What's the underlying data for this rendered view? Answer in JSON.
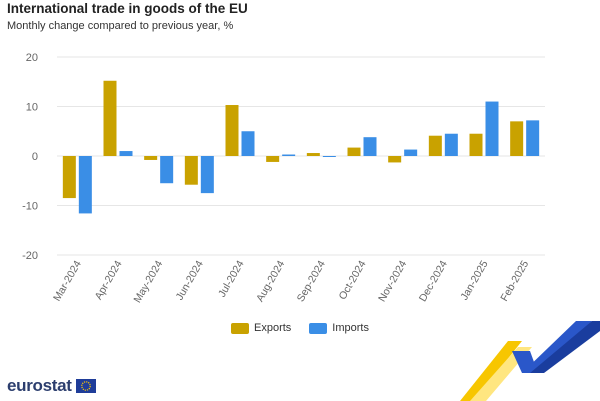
{
  "header": {
    "title": "International trade in goods of the EU",
    "subtitle": "Monthly change compared to previous year, %"
  },
  "legend": {
    "exports_label": "Exports",
    "imports_label": "Imports"
  },
  "logo": {
    "text": "eurostat"
  },
  "colors": {
    "exports": "#c9a200",
    "imports": "#3a8ee6",
    "grid": "#e6e6e6",
    "axis_text": "#666666"
  },
  "chart_data": {
    "type": "bar",
    "title": "International trade in goods of the EU",
    "subtitle": "Monthly change compared to previous year, %",
    "categories": [
      "Mar-2024",
      "Apr-2024",
      "May-2024",
      "Jun-2024",
      "Jul-2024",
      "Aug-2024",
      "Sep-2024",
      "Oct-2024",
      "Nov-2024",
      "Dec-2024",
      "Jan-2025",
      "Feb-2025"
    ],
    "series": [
      {
        "name": "Exports",
        "color": "#c9a200",
        "values": [
          -8.5,
          15.2,
          -0.8,
          -5.8,
          10.3,
          -1.2,
          0.6,
          1.7,
          -1.3,
          4.1,
          4.5,
          7.0
        ]
      },
      {
        "name": "Imports",
        "color": "#3a8ee6",
        "values": [
          -11.6,
          1.0,
          -5.5,
          -7.5,
          5.0,
          0.3,
          -0.2,
          3.8,
          1.3,
          4.5,
          11.0,
          7.2
        ]
      }
    ],
    "ylim": [
      -20,
      20
    ],
    "yticks": [
      -20,
      -10,
      0,
      10,
      20
    ],
    "xlabel": "",
    "ylabel": "",
    "grid": true,
    "legend_position": "bottom-center"
  }
}
